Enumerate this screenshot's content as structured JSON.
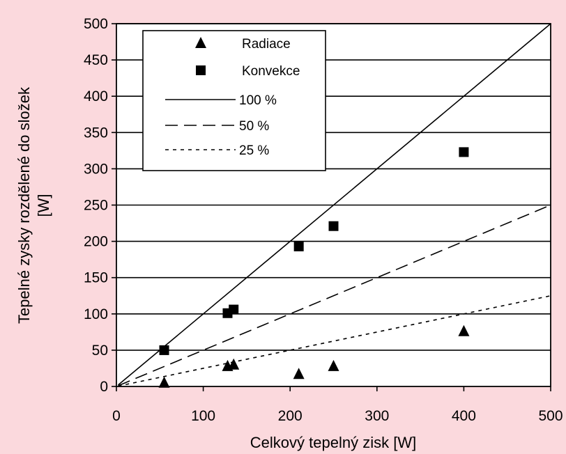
{
  "chart_data": {
    "type": "scatter",
    "title": "",
    "xlabel": "Celkový tepelný zisk [W]",
    "ylabel_lines": [
      "Tepelné zysky rozdělené do složek",
      "[W]"
    ],
    "xlim": [
      0,
      500
    ],
    "ylim": [
      0,
      500
    ],
    "x_ticks": [
      0,
      100,
      200,
      300,
      400,
      500
    ],
    "y_ticks": [
      0,
      50,
      100,
      150,
      200,
      250,
      300,
      350,
      400,
      450,
      500
    ],
    "grid": "horizontal",
    "legend_position": "top-left",
    "series": [
      {
        "name": "Radiace",
        "marker": "triangle",
        "points": [
          [
            55,
            5
          ],
          [
            128,
            28
          ],
          [
            135,
            30
          ],
          [
            210,
            17
          ],
          [
            250,
            28
          ],
          [
            400,
            76
          ]
        ]
      },
      {
        "name": "Konvekce",
        "marker": "square",
        "points": [
          [
            55,
            50
          ],
          [
            128,
            101
          ],
          [
            135,
            106
          ],
          [
            210,
            193
          ],
          [
            250,
            221
          ],
          [
            400,
            323
          ]
        ]
      }
    ],
    "reference_lines": [
      {
        "name": "100 %",
        "slope": 1.0,
        "dash": "solid"
      },
      {
        "name": "50 %",
        "slope": 0.5,
        "dash": "dashed"
      },
      {
        "name": "25 %",
        "slope": 0.25,
        "dash": "dotted"
      }
    ],
    "colors": {
      "background": "#fbd9dd",
      "plot_area": "#ffffff",
      "ink": "#000000"
    }
  }
}
